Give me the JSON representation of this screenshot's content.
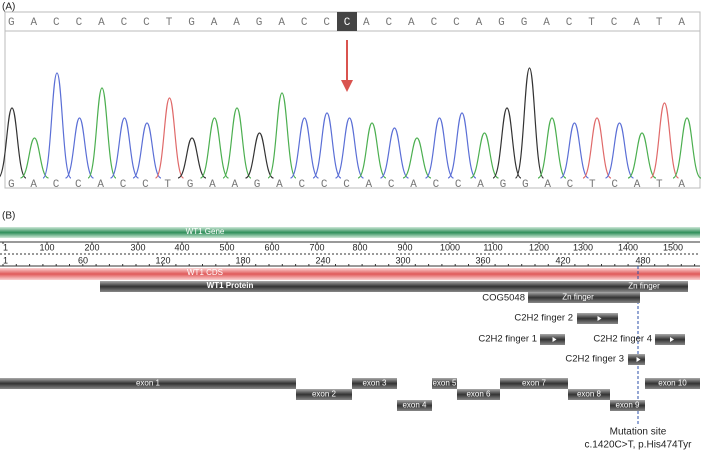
{
  "panel_a": {
    "label": "(A)",
    "sequence_top": {
      "before": "GACCACCTGAAGACC",
      "highlight": "C",
      "after": "ACACCAGGACTCATA"
    },
    "sequence_bottom": "GACCACCTGAAGACCCACACCAGGACTCATA"
  },
  "panel_b": {
    "label": "(B)",
    "gene_track": "WT1 Gene",
    "ruler_bp": [
      "1",
      "100",
      "200",
      "300",
      "400",
      "500",
      "600",
      "700",
      "800",
      "900",
      "1000",
      "1100",
      "1200",
      "1300",
      "1400",
      "1500"
    ],
    "ruler_aa": [
      "1",
      "60",
      "120",
      "180",
      "240",
      "300",
      "360",
      "420",
      "480"
    ],
    "cds_track": "WT1 CDS",
    "protein_track": "WT1 Protein",
    "domains": [
      {
        "label": "COG5048",
        "bar_text": "Zn finger"
      },
      {
        "bar_text": "Zn finger"
      },
      {
        "label": "C2H2 finger 2"
      },
      {
        "label": "C2H2 finger 1"
      },
      {
        "label": "C2H2 finger 4"
      },
      {
        "label": "C2H2 finger 3"
      }
    ],
    "exons": [
      "exon 1",
      "exon 2",
      "exon 3",
      "exon 4",
      "exon 5",
      "exon 6",
      "exon 7",
      "exon 8",
      "exon 9",
      "exon 10"
    ],
    "mutation": {
      "label": "Mutation site",
      "detail": "c.1420C>T, p.His474Tyr"
    }
  }
}
